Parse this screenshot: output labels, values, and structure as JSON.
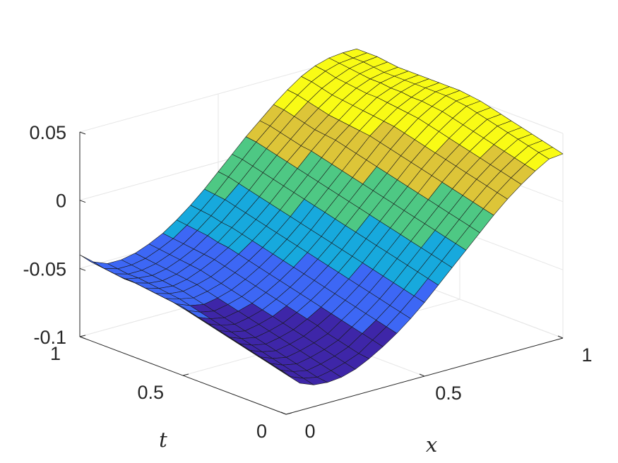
{
  "chart_data": {
    "type": "surface",
    "title": "",
    "xlabel": "x",
    "ylabel": "t",
    "zlabel": "",
    "xlim": [
      0,
      1
    ],
    "ylim": [
      0,
      1
    ],
    "zlim": [
      -0.1,
      0.05
    ],
    "clim": [
      -0.085,
      0.055
    ],
    "colormap": "parula",
    "grid": true,
    "x_ticks": [
      {
        "value": 0,
        "label": "0"
      },
      {
        "value": 0.5,
        "label": "0.5"
      },
      {
        "value": 1,
        "label": "1"
      }
    ],
    "t_ticks": [
      {
        "value": 0,
        "label": "0"
      },
      {
        "value": 0.5,
        "label": "0.5"
      },
      {
        "value": 1,
        "label": "1"
      }
    ],
    "z_ticks": [
      {
        "value": 0.05,
        "label": "0.05"
      },
      {
        "value": 0,
        "label": "0"
      },
      {
        "value": -0.05,
        "label": "-0.05"
      },
      {
        "value": -0.1,
        "label": "-0.1"
      }
    ],
    "x": [
      0,
      0.05,
      0.1,
      0.15,
      0.2,
      0.25,
      0.3,
      0.35,
      0.4,
      0.45,
      0.5,
      0.55,
      0.6,
      0.65,
      0.7,
      0.75,
      0.8,
      0.85,
      0.9,
      0.95,
      1
    ],
    "t": [
      0,
      0.05,
      0.1,
      0.15,
      0.2,
      0.25,
      0.3,
      0.35,
      0.4,
      0.45,
      0.5,
      0.55,
      0.6,
      0.65,
      0.7,
      0.75,
      0.8,
      0.85,
      0.9,
      0.95,
      1
    ],
    "z": [
      [
        -0.07,
        -0.08,
        -0.084,
        -0.085,
        -0.084,
        -0.081,
        -0.076,
        -0.07,
        -0.063,
        -0.055,
        -0.046,
        -0.036,
        -0.026,
        -0.016,
        -0.006,
        0.004,
        0.013,
        0.021,
        0.028,
        0.034,
        0.035
      ],
      [
        -0.068,
        -0.078,
        -0.082,
        -0.084,
        -0.082,
        -0.079,
        -0.075,
        -0.068,
        -0.061,
        -0.053,
        -0.044,
        -0.034,
        -0.024,
        -0.014,
        -0.004,
        0.006,
        0.015,
        0.023,
        0.03,
        0.036,
        0.037
      ],
      [
        -0.066,
        -0.076,
        -0.08,
        -0.082,
        -0.08,
        -0.077,
        -0.073,
        -0.066,
        -0.059,
        -0.051,
        -0.042,
        -0.032,
        -0.022,
        -0.012,
        -0.002,
        0.008,
        0.017,
        0.025,
        0.032,
        0.038,
        0.039
      ],
      [
        -0.064,
        -0.074,
        -0.078,
        -0.08,
        -0.078,
        -0.075,
        -0.071,
        -0.064,
        -0.057,
        -0.049,
        -0.04,
        -0.03,
        -0.02,
        -0.01,
        0.0,
        0.01,
        0.019,
        0.027,
        0.034,
        0.04,
        0.041
      ],
      [
        -0.062,
        -0.072,
        -0.076,
        -0.078,
        -0.076,
        -0.073,
        -0.069,
        -0.062,
        -0.055,
        -0.047,
        -0.038,
        -0.028,
        -0.018,
        -0.008,
        0.002,
        0.012,
        0.021,
        0.029,
        0.036,
        0.042,
        0.043
      ],
      [
        -0.06,
        -0.07,
        -0.074,
        -0.076,
        -0.074,
        -0.071,
        -0.066,
        -0.06,
        -0.053,
        -0.045,
        -0.036,
        -0.026,
        -0.016,
        -0.006,
        0.004,
        0.014,
        0.023,
        0.031,
        0.038,
        0.044,
        0.045
      ],
      [
        -0.058,
        -0.068,
        -0.072,
        -0.074,
        -0.072,
        -0.069,
        -0.064,
        -0.058,
        -0.051,
        -0.043,
        -0.034,
        -0.024,
        -0.014,
        -0.004,
        0.006,
        0.016,
        0.025,
        0.033,
        0.04,
        0.046,
        0.047
      ],
      [
        -0.056,
        -0.066,
        -0.07,
        -0.072,
        -0.07,
        -0.067,
        -0.062,
        -0.056,
        -0.049,
        -0.041,
        -0.032,
        -0.022,
        -0.012,
        -0.002,
        0.008,
        0.018,
        0.027,
        0.035,
        0.042,
        0.048,
        0.049
      ],
      [
        -0.054,
        -0.064,
        -0.068,
        -0.07,
        -0.068,
        -0.065,
        -0.06,
        -0.054,
        -0.047,
        -0.039,
        -0.03,
        -0.02,
        -0.01,
        0.0,
        0.01,
        0.02,
        0.029,
        0.037,
        0.044,
        0.05,
        0.051
      ],
      [
        -0.052,
        -0.062,
        -0.066,
        -0.068,
        -0.066,
        -0.063,
        -0.058,
        -0.052,
        -0.045,
        -0.037,
        -0.028,
        -0.018,
        -0.008,
        0.002,
        0.012,
        0.022,
        0.031,
        0.039,
        0.046,
        0.051,
        0.052
      ],
      [
        -0.05,
        -0.06,
        -0.064,
        -0.066,
        -0.064,
        -0.061,
        -0.056,
        -0.05,
        -0.043,
        -0.035,
        -0.026,
        -0.016,
        -0.006,
        0.004,
        0.014,
        0.024,
        0.033,
        0.041,
        0.047,
        0.052,
        0.053
      ],
      [
        -0.049,
        -0.058,
        -0.062,
        -0.064,
        -0.062,
        -0.059,
        -0.054,
        -0.048,
        -0.041,
        -0.033,
        -0.024,
        -0.014,
        -0.004,
        0.006,
        0.016,
        0.026,
        0.035,
        0.042,
        0.048,
        0.052,
        0.053
      ],
      [
        -0.048,
        -0.056,
        -0.06,
        -0.062,
        -0.06,
        -0.057,
        -0.052,
        -0.046,
        -0.039,
        -0.031,
        -0.022,
        -0.012,
        -0.002,
        0.008,
        0.018,
        0.028,
        0.036,
        0.043,
        0.048,
        0.052,
        0.053
      ],
      [
        -0.047,
        -0.055,
        -0.058,
        -0.06,
        -0.058,
        -0.055,
        -0.05,
        -0.044,
        -0.037,
        -0.029,
        -0.02,
        -0.01,
        0.0,
        0.01,
        0.02,
        0.029,
        0.037,
        0.044,
        0.049,
        0.052,
        0.053
      ],
      [
        -0.046,
        -0.054,
        -0.057,
        -0.058,
        -0.056,
        -0.053,
        -0.048,
        -0.042,
        -0.035,
        -0.027,
        -0.018,
        -0.008,
        0.002,
        0.012,
        0.022,
        0.03,
        0.038,
        0.045,
        0.049,
        0.052,
        0.053
      ],
      [
        -0.045,
        -0.053,
        -0.056,
        -0.057,
        -0.055,
        -0.051,
        -0.046,
        -0.04,
        -0.033,
        -0.025,
        -0.016,
        -0.006,
        0.004,
        0.014,
        0.023,
        0.031,
        0.039,
        0.045,
        0.05,
        0.052,
        0.053
      ],
      [
        -0.045,
        -0.052,
        -0.055,
        -0.056,
        -0.054,
        -0.05,
        -0.045,
        -0.039,
        -0.031,
        -0.023,
        -0.014,
        -0.004,
        0.006,
        0.015,
        0.024,
        0.032,
        0.04,
        0.046,
        0.05,
        0.052,
        0.053
      ],
      [
        -0.044,
        -0.052,
        -0.054,
        -0.055,
        -0.053,
        -0.049,
        -0.044,
        -0.037,
        -0.03,
        -0.021,
        -0.012,
        -0.002,
        0.008,
        0.017,
        0.026,
        0.034,
        0.041,
        0.047,
        0.051,
        0.053,
        0.054
      ],
      [
        -0.043,
        -0.051,
        -0.054,
        -0.054,
        -0.052,
        -0.048,
        -0.043,
        -0.036,
        -0.028,
        -0.019,
        -0.01,
        0.0,
        0.01,
        0.019,
        0.028,
        0.036,
        0.043,
        0.048,
        0.052,
        0.054,
        0.055
      ],
      [
        -0.042,
        -0.05,
        -0.053,
        -0.053,
        -0.051,
        -0.047,
        -0.042,
        -0.035,
        -0.027,
        -0.018,
        -0.008,
        0.002,
        0.012,
        0.021,
        0.03,
        0.038,
        0.045,
        0.05,
        0.053,
        0.054,
        0.055
      ],
      [
        -0.04,
        -0.048,
        -0.052,
        -0.052,
        -0.05,
        -0.046,
        -0.041,
        -0.034,
        -0.026,
        -0.017,
        -0.007,
        0.003,
        0.013,
        0.022,
        0.031,
        0.039,
        0.046,
        0.051,
        0.054,
        0.055,
        0.055
      ]
    ]
  }
}
